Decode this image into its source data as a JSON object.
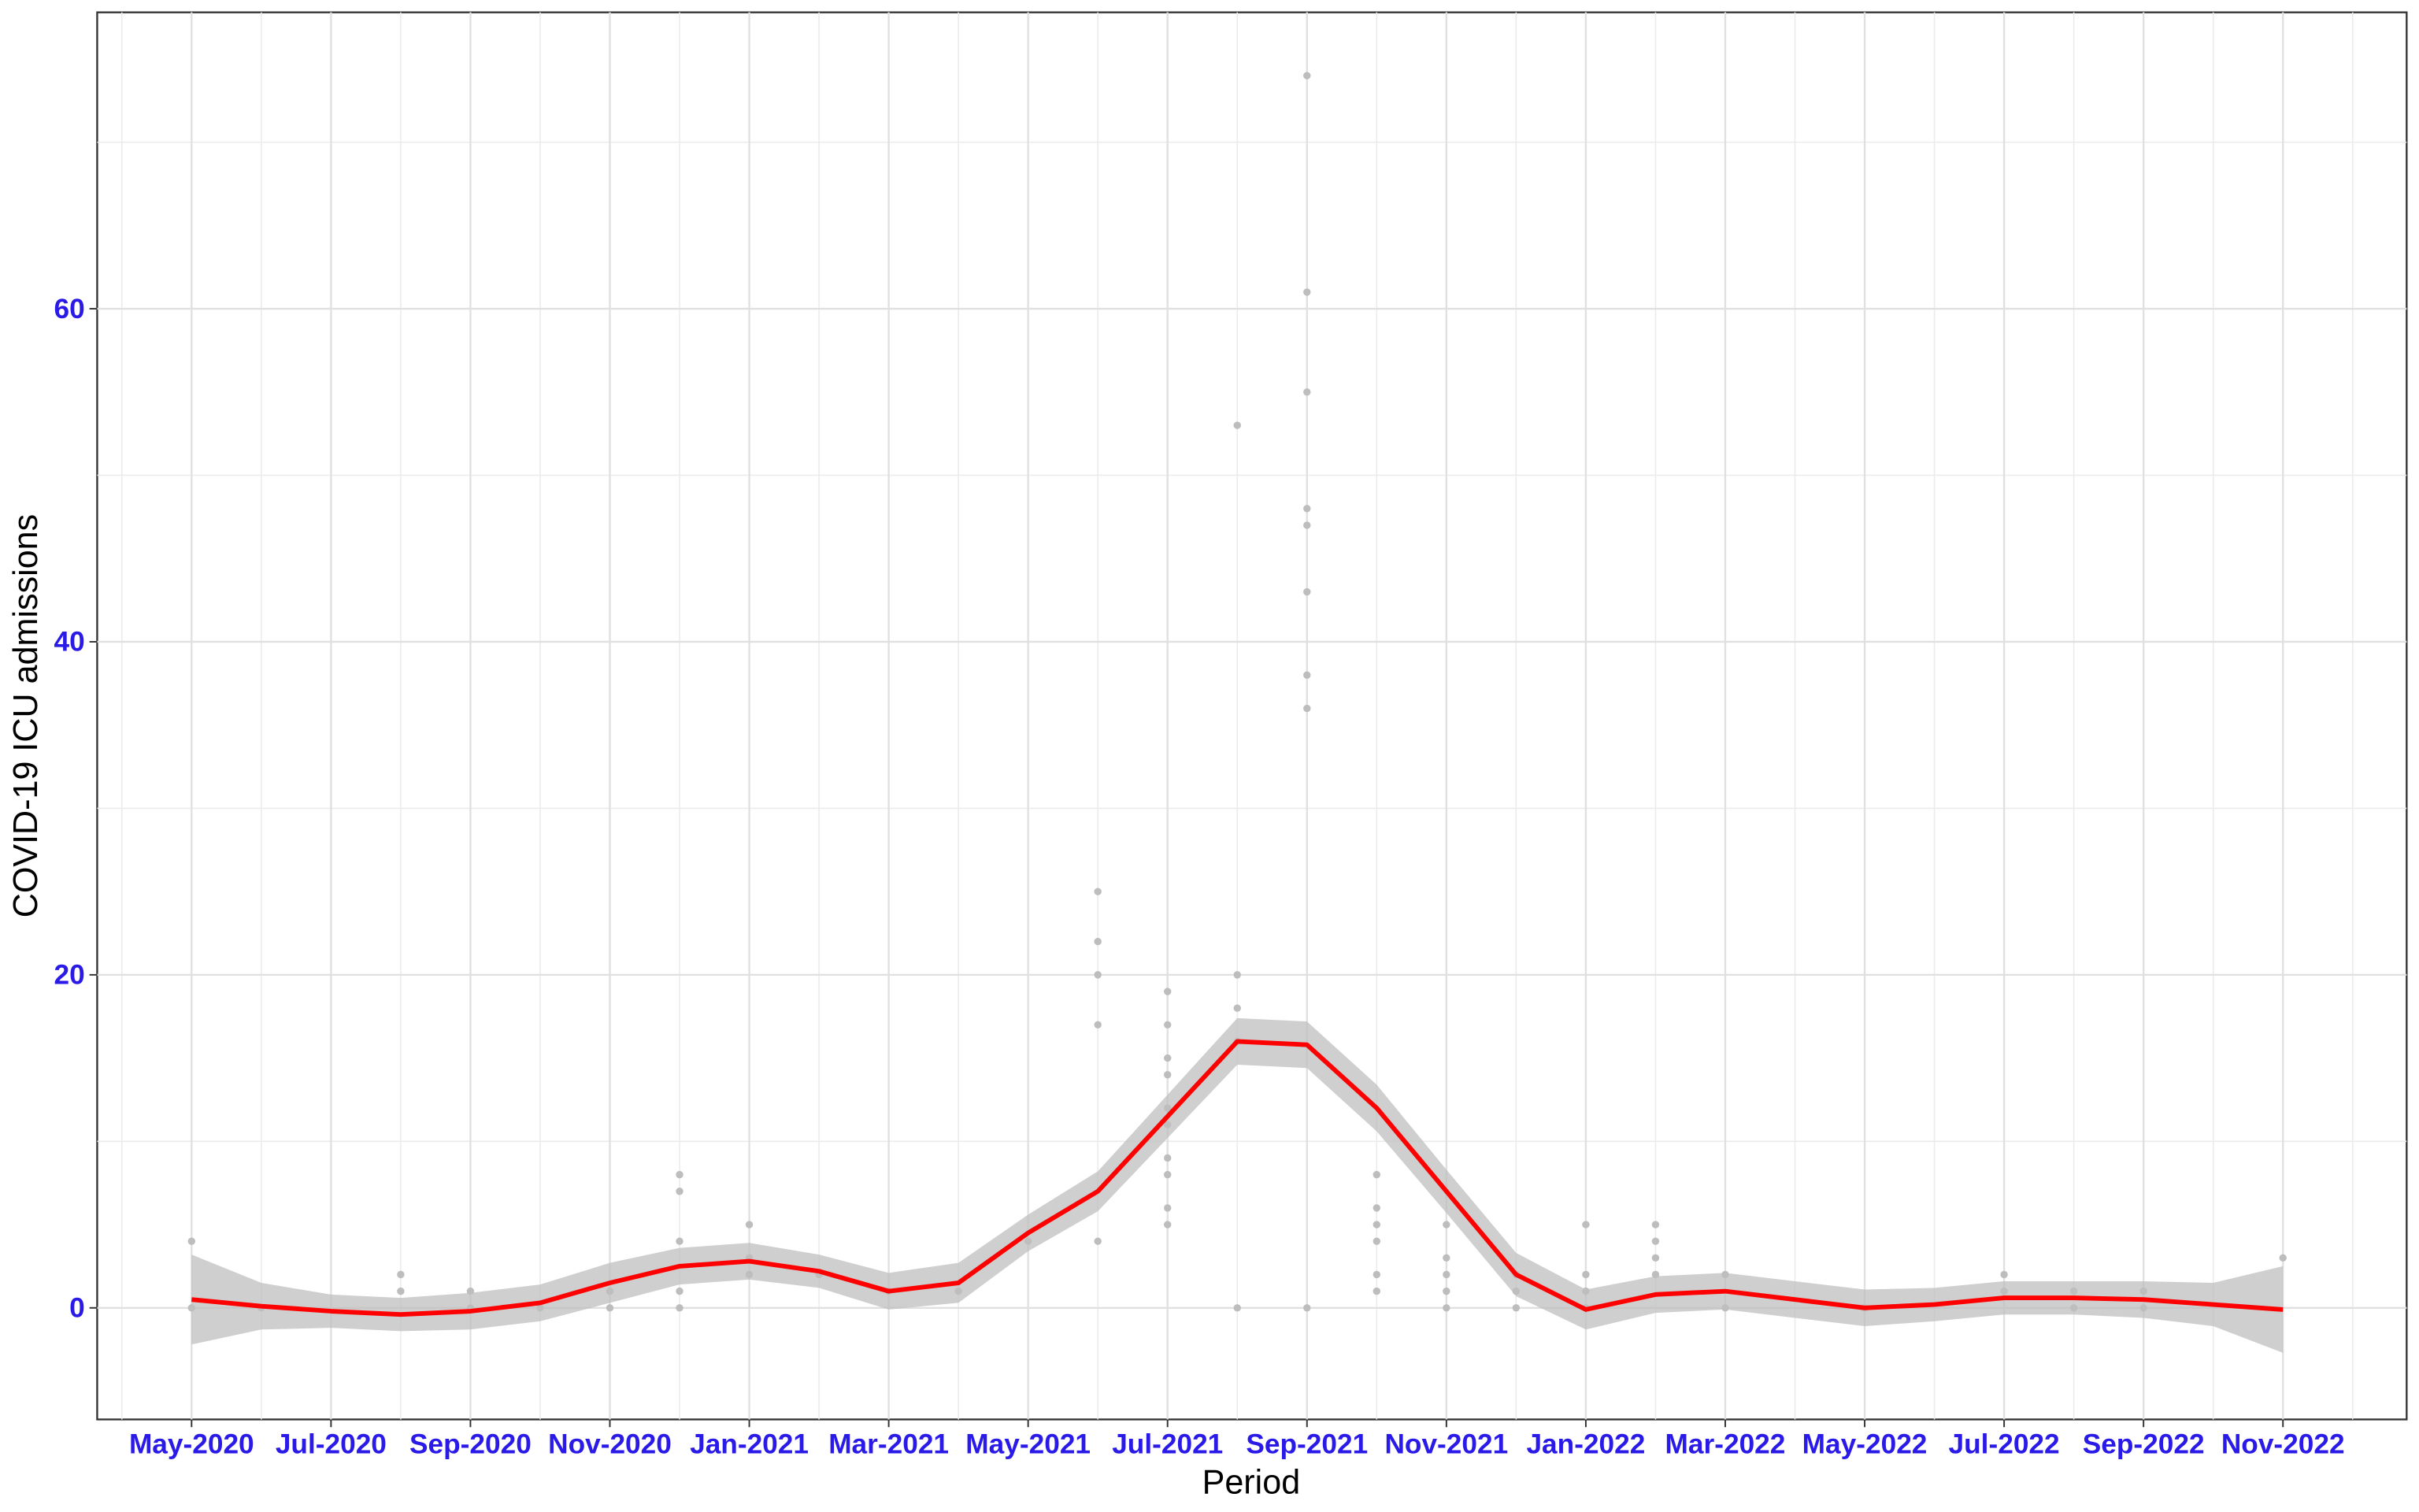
{
  "chart_data": {
    "type": "line",
    "x_label": "Period",
    "y_label": "COVID-19 ICU admissions",
    "xlim": [
      "2020-04",
      "2022-12"
    ],
    "ylim": [
      -6.7,
      77.8
    ],
    "xticks": [
      {
        "value": "2020-05",
        "label": "May-2020"
      },
      {
        "value": "2020-07",
        "label": "Jul-2020"
      },
      {
        "value": "2020-09",
        "label": "Sep-2020"
      },
      {
        "value": "2020-11",
        "label": "Nov-2020"
      },
      {
        "value": "2021-01",
        "label": "Jan-2021"
      },
      {
        "value": "2021-03",
        "label": "Mar-2021"
      },
      {
        "value": "2021-05",
        "label": "May-2021"
      },
      {
        "value": "2021-07",
        "label": "Jul-2021"
      },
      {
        "value": "2021-09",
        "label": "Sep-2021"
      },
      {
        "value": "2021-11",
        "label": "Nov-2021"
      },
      {
        "value": "2022-01",
        "label": "Jan-2022"
      },
      {
        "value": "2022-03",
        "label": "Mar-2022"
      },
      {
        "value": "2022-05",
        "label": "May-2022"
      },
      {
        "value": "2022-07",
        "label": "Jul-2022"
      },
      {
        "value": "2022-09",
        "label": "Sep-2022"
      },
      {
        "value": "2022-11",
        "label": "Nov-2022"
      }
    ],
    "yticks": [
      0,
      20,
      40,
      60
    ],
    "y_minor_grid": [
      10,
      30,
      50,
      70
    ],
    "grid": true,
    "x": [
      "2020-05",
      "2020-06",
      "2020-07",
      "2020-08",
      "2020-09",
      "2020-10",
      "2020-11",
      "2020-12",
      "2021-01",
      "2021-02",
      "2021-03",
      "2021-04",
      "2021-05",
      "2021-06",
      "2021-07",
      "2021-08",
      "2021-09",
      "2021-10",
      "2021-11",
      "2021-12",
      "2022-01",
      "2022-02",
      "2022-03",
      "2022-04",
      "2022-05",
      "2022-06",
      "2022-07",
      "2022-08",
      "2022-09",
      "2022-10",
      "2022-11"
    ],
    "smooth": {
      "color": "#ff0000",
      "band_color": "#bfbfbf",
      "values": [
        0.5,
        0.1,
        -0.2,
        -0.4,
        -0.2,
        0.3,
        1.5,
        2.5,
        2.8,
        2.2,
        1.0,
        1.5,
        4.5,
        7.0,
        11.5,
        16.0,
        15.8,
        12.0,
        7.0,
        2.0,
        -0.1,
        0.8,
        1.0,
        0.5,
        0.0,
        0.2,
        0.6,
        0.6,
        0.5,
        0.2,
        -0.1
      ],
      "ci_lower": [
        -2.2,
        -1.3,
        -1.2,
        -1.4,
        -1.3,
        -0.8,
        0.3,
        1.4,
        1.7,
        1.2,
        -0.1,
        0.3,
        3.4,
        5.8,
        10.2,
        14.6,
        14.4,
        10.6,
        5.7,
        0.7,
        -1.3,
        -0.3,
        -0.1,
        -0.6,
        -1.1,
        -0.8,
        -0.4,
        -0.4,
        -0.6,
        -1.1,
        -2.7
      ],
      "ci_upper": [
        3.2,
        1.5,
        0.8,
        0.6,
        0.9,
        1.4,
        2.7,
        3.6,
        3.9,
        3.2,
        2.1,
        2.7,
        5.6,
        8.2,
        12.8,
        17.4,
        17.2,
        13.4,
        8.3,
        3.3,
        1.1,
        1.9,
        2.1,
        1.6,
        1.1,
        1.2,
        1.6,
        1.6,
        1.6,
        1.5,
        2.5
      ]
    },
    "points": {
      "color": "#bdbdbd",
      "x": [
        "2020-05",
        "2020-05",
        "2020-06",
        "2020-08",
        "2020-08",
        "2020-09",
        "2020-09",
        "2020-10",
        "2020-11",
        "2020-11",
        "2020-12",
        "2020-12",
        "2020-12",
        "2020-12",
        "2020-12",
        "2021-01",
        "2021-01",
        "2021-01",
        "2021-02",
        "2021-03",
        "2021-04",
        "2021-05",
        "2021-06",
        "2021-06",
        "2021-06",
        "2021-06",
        "2021-06",
        "2021-07",
        "2021-07",
        "2021-07",
        "2021-07",
        "2021-07",
        "2021-07",
        "2021-07",
        "2021-07",
        "2021-07",
        "2021-07",
        "2021-08",
        "2021-08",
        "2021-08",
        "2021-08",
        "2021-08",
        "2021-09",
        "2021-09",
        "2021-09",
        "2021-09",
        "2021-09",
        "2021-09",
        "2021-09",
        "2021-09",
        "2021-09",
        "2021-10",
        "2021-10",
        "2021-10",
        "2021-10",
        "2021-10",
        "2021-10",
        "2021-11",
        "2021-11",
        "2021-11",
        "2021-11",
        "2021-11",
        "2021-12",
        "2021-12",
        "2021-12",
        "2022-01",
        "2022-01",
        "2022-01",
        "2022-01",
        "2022-02",
        "2022-02",
        "2022-02",
        "2022-02",
        "2022-03",
        "2022-03",
        "2022-05",
        "2022-07",
        "2022-07",
        "2022-08",
        "2022-08",
        "2022-09",
        "2022-09",
        "2022-11"
      ],
      "values": [
        4,
        0,
        0,
        1,
        2,
        1,
        0,
        0,
        0,
        1,
        8,
        7,
        4,
        1,
        0,
        5,
        3,
        2,
        2,
        1,
        1,
        4,
        4,
        20,
        22,
        25,
        17,
        19,
        17,
        14,
        11,
        8,
        5,
        6,
        9,
        12,
        15,
        53,
        20,
        18,
        16,
        0,
        74,
        61,
        55,
        48,
        47,
        43,
        38,
        36,
        0,
        8,
        6,
        5,
        4,
        2,
        1,
        5,
        3,
        2,
        1,
        0,
        1,
        0,
        2,
        2,
        1,
        0,
        5,
        5,
        4,
        3,
        2,
        0,
        2,
        0,
        2,
        1,
        1,
        0,
        1,
        0,
        3
      ]
    }
  }
}
